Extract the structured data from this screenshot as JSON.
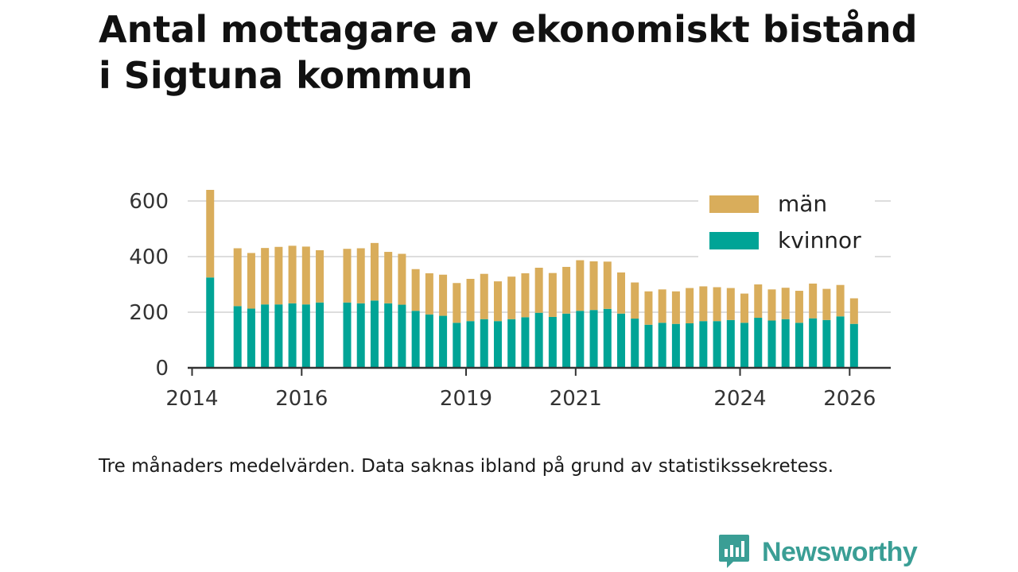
{
  "title": "Antal mottagare av ekonomiskt bistånd i Sigtuna kommun",
  "caption": "Tre månaders medelvärden. Data saknas ibland på grund av statistikssekretess.",
  "brand": {
    "name": "Newsworthy"
  },
  "colors": {
    "men": "#d9ad5b",
    "women": "#00a496",
    "axis": "#333333",
    "grid": "#dddddd",
    "brand": "#3a9e95"
  },
  "chart_data": {
    "type": "bar",
    "stacked": true,
    "title": "Antal mottagare av ekonomiskt bistånd i Sigtuna kommun",
    "xlabel": "",
    "ylabel": "",
    "ylim": [
      0,
      660
    ],
    "yticks": [
      0,
      200,
      400,
      600
    ],
    "xticks": [
      {
        "label": "2014",
        "value": 2014.0
      },
      {
        "label": "2016",
        "value": 2016.0
      },
      {
        "label": "2019",
        "value": 2019.0
      },
      {
        "label": "2021",
        "value": 2021.0
      },
      {
        "label": "2024",
        "value": 2024.0
      },
      {
        "label": "2026",
        "value": 2026.0
      }
    ],
    "grid": true,
    "legend_position": "top-right",
    "legend": [
      {
        "label": "män",
        "series": "men"
      },
      {
        "label": "kvinnor",
        "series": "women"
      }
    ],
    "x": [
      2014.33,
      2014.83,
      2015.08,
      2015.33,
      2015.58,
      2015.83,
      2016.08,
      2016.33,
      2016.83,
      2017.08,
      2017.33,
      2017.58,
      2017.83,
      2018.08,
      2018.33,
      2018.58,
      2018.83,
      2019.08,
      2019.33,
      2019.58,
      2019.83,
      2020.08,
      2020.33,
      2020.58,
      2020.83,
      2021.08,
      2021.33,
      2021.58,
      2021.83,
      2022.08,
      2022.33,
      2022.58,
      2022.83,
      2023.08,
      2023.33,
      2023.58,
      2023.83,
      2024.08,
      2024.33,
      2024.58,
      2024.83,
      2025.08,
      2025.33,
      2025.58,
      2025.83,
      2026.08
    ],
    "series": [
      {
        "name": "kvinnor",
        "key": "women",
        "values": [
          325,
          222,
          213,
          228,
          228,
          232,
          228,
          235,
          235,
          232,
          242,
          232,
          227,
          205,
          192,
          187,
          162,
          168,
          175,
          168,
          175,
          182,
          198,
          183,
          195,
          205,
          208,
          212,
          195,
          177,
          155,
          162,
          158,
          160,
          168,
          168,
          172,
          162,
          180,
          170,
          175,
          162,
          178,
          172,
          185,
          158
        ]
      },
      {
        "name": "män",
        "key": "men",
        "values": [
          315,
          208,
          200,
          203,
          207,
          207,
          208,
          188,
          193,
          198,
          207,
          185,
          183,
          150,
          148,
          148,
          143,
          152,
          163,
          143,
          153,
          158,
          162,
          158,
          168,
          182,
          175,
          170,
          148,
          130,
          120,
          120,
          117,
          127,
          125,
          122,
          115,
          105,
          120,
          112,
          113,
          115,
          125,
          112,
          113,
          92
        ]
      }
    ]
  }
}
